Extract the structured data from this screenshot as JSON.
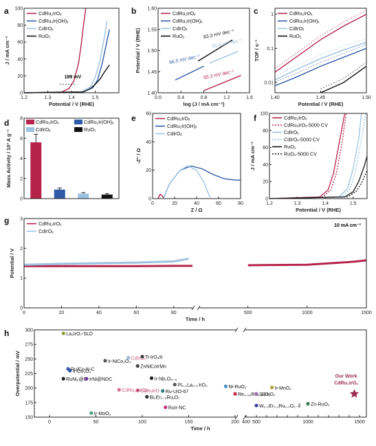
{
  "colors": {
    "cdru2iro": "#b5234a",
    "cdru2iroh": "#2f5aa8",
    "cdirox": "#9dc2e0",
    "ruo2": "#111111",
    "panel_h_points": "#7a7a7a",
    "our_work": "#9b2d4f"
  },
  "chart_data": [
    {
      "panel": "a",
      "type": "line",
      "xlabel": "Potential / V (RHE)",
      "ylabel": "J / mA cm⁻²",
      "xlim": [
        1.2,
        1.6
      ],
      "ylim": [
        0,
        100
      ],
      "xticks": [
        "1.2",
        "1.3",
        "1.4",
        "1.5"
      ],
      "yticks": [
        "0",
        "20",
        "40",
        "60",
        "80",
        "100"
      ],
      "legend": [
        "CdRu₂IrOₓ",
        "CdRu₂Ir(OH)ₓ",
        "CdIrOₓ",
        "RuO₂"
      ],
      "annotations": [
        "189 mV"
      ],
      "series": [
        {
          "name": "CdRu₂IrOₓ",
          "x": [
            1.2,
            1.36,
            1.39,
            1.41,
            1.43,
            1.44,
            1.45,
            1.46
          ],
          "y": [
            0,
            1,
            5,
            14,
            35,
            55,
            78,
            100
          ]
        },
        {
          "name": "CdRu₂Ir(OH)ₓ",
          "x": [
            1.2,
            1.45,
            1.49,
            1.51,
            1.53,
            1.545,
            1.56
          ],
          "y": [
            0,
            1,
            6,
            15,
            35,
            55,
            75
          ]
        },
        {
          "name": "CdIrOₓ",
          "x": [
            1.2,
            1.44,
            1.48,
            1.5,
            1.52,
            1.535,
            1.55
          ],
          "y": [
            0,
            1,
            7,
            18,
            38,
            60,
            85
          ]
        },
        {
          "name": "RuO₂",
          "x": [
            1.2,
            1.45,
            1.48,
            1.5,
            1.52,
            1.54,
            1.56
          ],
          "y": [
            0,
            1,
            5,
            10,
            16,
            25,
            33
          ]
        }
      ]
    },
    {
      "panel": "b",
      "type": "line",
      "xlabel": "log (J / mA cm⁻²)",
      "ylabel": "Potential / V (RHE)",
      "xlim": [
        0.0,
        1.6
      ],
      "ylim": [
        1.4,
        1.6
      ],
      "xticks": [
        "0.0",
        "0.4",
        "0.8",
        "1.2",
        "1.6"
      ],
      "yticks": [
        "1.40",
        "1.45",
        "1.50",
        "1.55",
        "1.60"
      ],
      "legend": [
        "CdRu₂IrOₓ",
        "CdRu₂Ir(OH)ₓ",
        "CdIrOₓ",
        "RuO₂"
      ],
      "annotations": [
        "83.3 mV dec⁻¹",
        "55.9 mV dec⁻¹",
        "66.5 mV dec⁻¹",
        "55.3 mV dec⁻¹"
      ],
      "series": [
        {
          "name": "RuO₂",
          "x": [
            0.7,
            1.3
          ],
          "y": [
            1.475,
            1.525
          ]
        },
        {
          "name": "CdIrOₓ",
          "x": [
            0.9,
            1.4
          ],
          "y": [
            1.47,
            1.498
          ]
        },
        {
          "name": "CdRu₂Ir(OH)ₓ",
          "x": [
            0.3,
            0.8
          ],
          "y": [
            1.43,
            1.463
          ]
        },
        {
          "name": "CdRu₂IrOₓ",
          "x": [
            0.8,
            1.45
          ],
          "y": [
            1.405,
            1.441
          ]
        }
      ]
    },
    {
      "panel": "c",
      "type": "line",
      "xlabel": "Potential / V (RHE)",
      "ylabel": "TOF / s⁻¹",
      "xlim": [
        1.4,
        1.5
      ],
      "ylim": [
        0.005,
        1.5
      ],
      "yscale": "log",
      "xticks": [
        "1.40",
        "1.45",
        "1.50"
      ],
      "yticks": [
        "0.01",
        "0.1",
        "1"
      ],
      "legend": [
        "CdRu₂IrOₓ",
        "CdRu₂Ir(OH)ₓ",
        "CdIrOₓ",
        "RuO₂"
      ],
      "series": [
        {
          "name": "CdRu₂IrOₓ",
          "x": [
            1.4,
            1.425,
            1.45,
            1.475,
            1.5
          ],
          "y": [
            0.02,
            0.06,
            0.18,
            0.45,
            1.0
          ]
        },
        {
          "name": "CdRu₂Ir(OH)ₓ",
          "x": [
            1.4,
            1.425,
            1.45,
            1.475,
            1.5
          ],
          "y": [
            0.008,
            0.015,
            0.03,
            0.055,
            0.1
          ]
        },
        {
          "name": "CdIrOₓ",
          "x": [
            1.4,
            1.425,
            1.45,
            1.475,
            1.5
          ],
          "y": [
            0.012,
            0.025,
            0.05,
            0.09,
            0.15
          ]
        },
        {
          "name": "RuO₂",
          "x": [
            1.45,
            1.475,
            1.5
          ],
          "y": [
            0.005,
            0.01,
            0.03
          ]
        }
      ]
    },
    {
      "panel": "d",
      "type": "bar",
      "ylabel": "Mass Activity / 10³ A g⁻¹",
      "ylim": [
        0,
        8
      ],
      "yticks": [
        "0",
        "2",
        "4",
        "6",
        "8"
      ],
      "categories": [
        "CdRu₂IrOₓ",
        "CdRu₂Ir(OH)ₓ",
        "CdIrOₓ",
        "RuO₂"
      ],
      "values": [
        5.6,
        0.9,
        0.5,
        0.4
      ],
      "errors": [
        0.8,
        0.15,
        0.1,
        0.1
      ]
    },
    {
      "panel": "e",
      "type": "line",
      "xlabel": "Z / Ω",
      "ylabel": "-Z'' / Ω",
      "xlim": [
        0,
        80
      ],
      "ylim": [
        0,
        60
      ],
      "xticks": [
        "0",
        "20",
        "40",
        "60",
        "80"
      ],
      "yticks": [
        "0",
        "20",
        "40",
        "60"
      ],
      "legend": [
        "CdRu₂IrOₓ",
        "CdRu₂Ir(OH)ₓ",
        "CdIrOₓ"
      ],
      "series": [
        {
          "name": "CdRu₂IrOₓ",
          "x": [
            5,
            6,
            7,
            8,
            10
          ],
          "y": [
            0,
            2,
            3,
            2.5,
            0.5
          ]
        },
        {
          "name": "CdRu₂Ir(OH)ₓ",
          "x": [
            10,
            15,
            25,
            35,
            45,
            55,
            65,
            75,
            80
          ],
          "y": [
            0,
            10,
            20,
            23,
            21,
            17,
            14,
            13,
            13
          ]
        },
        {
          "name": "CdIrOₓ",
          "x": [
            10,
            15,
            25,
            32,
            40,
            47,
            52
          ],
          "y": [
            0,
            10,
            20,
            23,
            20,
            11,
            1
          ]
        }
      ]
    },
    {
      "panel": "f",
      "type": "line",
      "xlabel": "Potential / V (RHE)",
      "ylabel": "J / mA cm⁻²",
      "xlim": [
        1.2,
        1.55
      ],
      "ylim": [
        0,
        100
      ],
      "xticks": [
        "1.2",
        "1.3",
        "1.4",
        "1.5"
      ],
      "yticks": [
        "0",
        "20",
        "40",
        "60",
        "80",
        "100"
      ],
      "legend": [
        "CdRu₂IrOₓ",
        "CdRu₂IrOₓ-5000 CV",
        "CdIrOₓ",
        "CdIrOₓ-5000 CV",
        "RuO₂",
        "RuO₂-5000 CV"
      ],
      "series": [
        {
          "name": "CdRu₂IrOₓ",
          "x": [
            1.2,
            1.38,
            1.41,
            1.43,
            1.45,
            1.47
          ],
          "y": [
            0,
            2,
            10,
            30,
            65,
            100
          ]
        },
        {
          "name": "CdRu₂IrOₓ-5000 CV",
          "x": [
            1.2,
            1.39,
            1.42,
            1.44,
            1.46,
            1.475
          ],
          "y": [
            0,
            2,
            10,
            30,
            65,
            100
          ]
        },
        {
          "name": "CdIrOₓ",
          "x": [
            1.2,
            1.45,
            1.48,
            1.5,
            1.52,
            1.53
          ],
          "y": [
            0,
            2,
            12,
            35,
            70,
            100
          ]
        },
        {
          "name": "CdIrOₓ-5000 CV",
          "x": [
            1.2,
            1.46,
            1.49,
            1.51,
            1.53,
            1.545
          ],
          "y": [
            0,
            2,
            12,
            35,
            70,
            100
          ]
        },
        {
          "name": "RuO₂",
          "x": [
            1.2,
            1.47,
            1.5,
            1.52,
            1.54,
            1.55
          ],
          "y": [
            0,
            2,
            8,
            20,
            38,
            50
          ]
        },
        {
          "name": "RuO₂-5000 CV",
          "x": [
            1.2,
            1.48,
            1.51,
            1.53,
            1.55
          ],
          "y": [
            0,
            2,
            8,
            18,
            33
          ]
        }
      ]
    },
    {
      "panel": "g",
      "type": "line",
      "xlabel": "Time / h",
      "ylabel": "Potential / V",
      "ylim": [
        0,
        3
      ],
      "yticks": [
        "0",
        "1",
        "2",
        "3"
      ],
      "xticks": [
        "0",
        "20",
        "40",
        "60",
        "80",
        "500",
        "1000",
        "1500"
      ],
      "legend": [
        "CdRu₂IrOₓ",
        "CdIrOₓ"
      ],
      "annotations": [
        "10 mA cm⁻²"
      ],
      "series": [
        {
          "name": "CdRu₂IrOₓ",
          "x": [
            0,
            20,
            40,
            60,
            80,
            90,
            500,
            1000,
            1400,
            1500
          ],
          "y": [
            1.4,
            1.4,
            1.4,
            1.4,
            1.41,
            1.41,
            1.43,
            1.45,
            1.55,
            1.6
          ]
        },
        {
          "name": "CdIrOₓ",
          "x": [
            0,
            20,
            40,
            60,
            80,
            88
          ],
          "y": [
            1.45,
            1.48,
            1.5,
            1.52,
            1.56,
            1.65
          ]
        }
      ]
    },
    {
      "panel": "h",
      "type": "scatter",
      "xlabel": "Time / h",
      "ylabel": "Overpotential / mV",
      "ylim": [
        150,
        300
      ],
      "yticks": [
        "150",
        "175",
        "200",
        "225",
        "250",
        "275",
        "300"
      ],
      "xticks": [
        "0",
        "50",
        "100",
        "150",
        "200",
        "400",
        "500",
        "600",
        "700",
        "800",
        "900",
        "1000",
        "1100",
        "1200",
        "1300",
        "1400",
        "1500"
      ],
      "annotations": [
        "Our Work",
        "CdRu₂IrOₓ"
      ],
      "points": [
        {
          "label": "La₃IrO₇-SLD",
          "x": 15,
          "y": 294
        },
        {
          "label": "Ru/Co-N-C",
          "x": 20,
          "y": 233
        },
        {
          "label": "Ir-Co₃O₄",
          "x": 22,
          "y": 230
        },
        {
          "label": "CdIrOₓ",
          "x": 85,
          "y": 252
        },
        {
          "label": "Ti-IrOₓ/Ir",
          "x": 100,
          "y": 254
        },
        {
          "label": "Ir-NiCo₂O₄",
          "x": 60,
          "y": 247
        },
        {
          "label": "ZnNiCoIrMn",
          "x": 95,
          "y": 238
        },
        {
          "label": "RuNi₂@G",
          "x": 15,
          "y": 216
        },
        {
          "label": "IrNi@NDC",
          "x": 40,
          "y": 216
        },
        {
          "label": "Ir-Nb₂O₅₋ₓ",
          "x": 110,
          "y": 217
        },
        {
          "label": "Pt₀.₁La₀.₁-IrO₂",
          "x": 135,
          "y": 206
        },
        {
          "label": "CdRu₂.₅IrOₓ",
          "x": 75,
          "y": 197
        },
        {
          "label": "CdRuIrO",
          "x": 95,
          "y": 196
        },
        {
          "label": "Ru-UiO-67",
          "x": 122,
          "y": 195
        },
        {
          "label": "Bi₂Er₂₋ₓRuₓO₇",
          "x": 105,
          "y": 185
        },
        {
          "label": "RuIr-NC",
          "x": 125,
          "y": 167
        },
        {
          "label": "Ir-MoO₃",
          "x": 45,
          "y": 157
        },
        {
          "label": "Ni-RuO₂",
          "x": 203,
          "y": 203
        },
        {
          "label": "Re₀.₀₆Ru₀.₉₄O₂",
          "x": 200,
          "y": 190
        },
        {
          "label": "Ir-MnO₂",
          "x": 650,
          "y": 201
        },
        {
          "label": "3R-IrO₂",
          "x": 500,
          "y": 190
        },
        {
          "label": "W₀.₂Er₀.₁Ru₀.₇O₂₋δ",
          "x": 500,
          "y": 170
        },
        {
          "label": "Zn-RuO₂",
          "x": 1000,
          "y": 173
        },
        {
          "label": "CdRu₂IrOₓ",
          "x": 1450,
          "y": 190
        }
      ]
    }
  ]
}
